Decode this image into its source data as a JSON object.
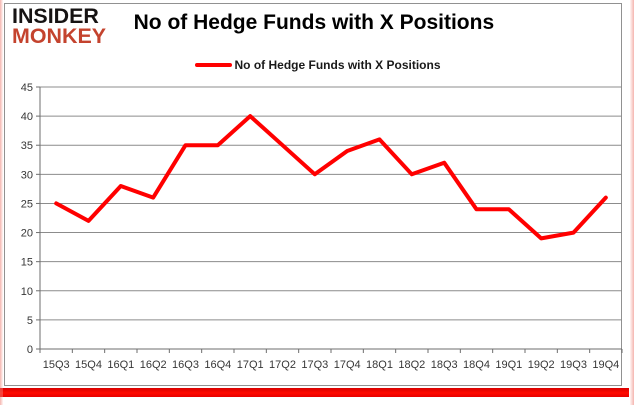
{
  "header": {
    "logo_line1": "INSIDER",
    "logo_line2": "MONKEY",
    "title": "No of Hedge Funds with X Positions"
  },
  "legend": {
    "label": "No of Hedge Funds with X Positions"
  },
  "colors": {
    "line": "#ff0000",
    "logo_red": "#c4432e",
    "grid": "#8c8c8c",
    "axis": "#6e6e6e",
    "tick_text": "#373737",
    "bottom_bar": "#ff0000"
  },
  "chart_data": {
    "type": "line",
    "title": "No of Hedge Funds with X Positions",
    "series_name": "No of Hedge Funds with X Positions",
    "categories": [
      "15Q3",
      "15Q4",
      "16Q1",
      "16Q2",
      "16Q3",
      "16Q4",
      "17Q1",
      "17Q2",
      "17Q3",
      "17Q4",
      "18Q1",
      "18Q2",
      "18Q3",
      "18Q4",
      "19Q1",
      "19Q2",
      "19Q3",
      "19Q4"
    ],
    "values": [
      25,
      22,
      28,
      26,
      35,
      35,
      40,
      35,
      30,
      34,
      36,
      30,
      32,
      24,
      24,
      19,
      20,
      26
    ],
    "xlabel": "",
    "ylabel": "",
    "ylim": [
      0,
      45
    ],
    "yticks": [
      0,
      5,
      10,
      15,
      20,
      25,
      30,
      35,
      40,
      45
    ],
    "grid": "horizontal",
    "legend_position": "top-center",
    "line_color": "#ff0000",
    "line_width": 4
  }
}
